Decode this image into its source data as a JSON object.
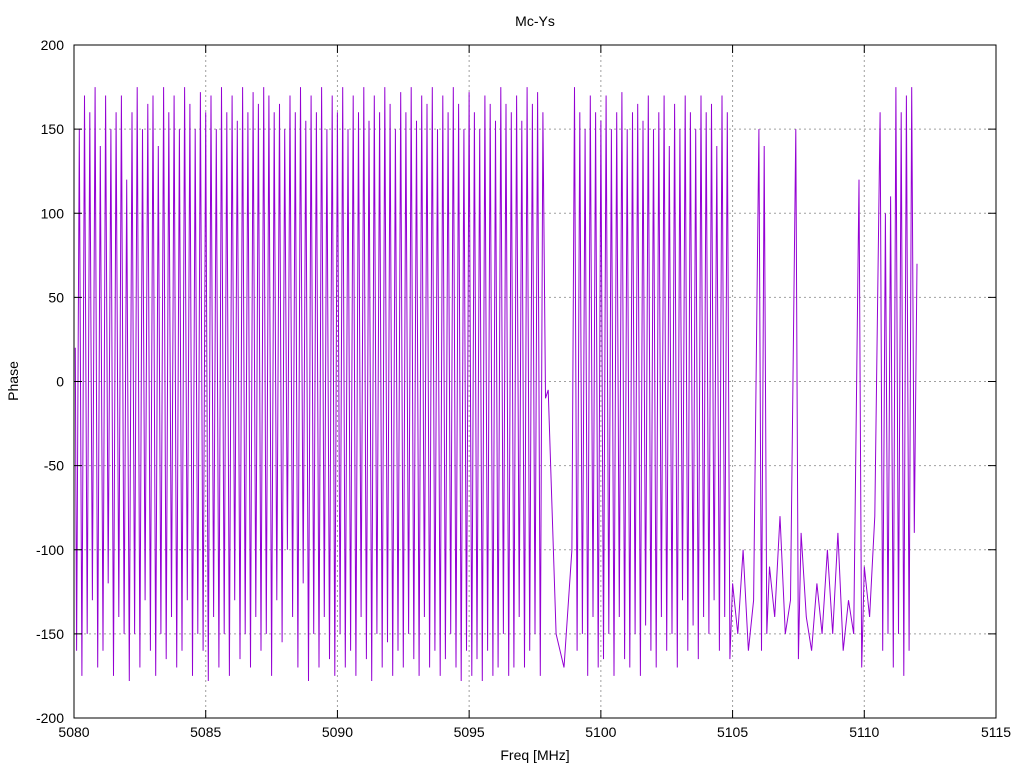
{
  "chart_data": {
    "type": "line",
    "title": "Mc-Ys",
    "xlabel": "Freq [MHz]",
    "ylabel": "Phase",
    "xlim": [
      5080,
      5115
    ],
    "ylim": [
      -200,
      200
    ],
    "xticks": [
      5080,
      5085,
      5090,
      5095,
      5100,
      5105,
      5110,
      5115
    ],
    "yticks": [
      -200,
      -150,
      -100,
      -50,
      0,
      50,
      100,
      150,
      200
    ],
    "grid": true,
    "legend": "none",
    "series": [
      {
        "color": "#9400d3",
        "x_start": 5080.0,
        "x_end": 5112.0,
        "points": [
          [
            5080.05,
            20
          ],
          [
            5080.1,
            -160
          ],
          [
            5080.2,
            150
          ],
          [
            5080.3,
            -175
          ],
          [
            5080.4,
            170
          ],
          [
            5080.5,
            -150
          ],
          [
            5080.6,
            160
          ],
          [
            5080.7,
            -130
          ],
          [
            5080.8,
            175
          ],
          [
            5080.9,
            -170
          ],
          [
            5081.0,
            140
          ],
          [
            5081.1,
            -160
          ],
          [
            5081.2,
            170
          ],
          [
            5081.3,
            -120
          ],
          [
            5081.4,
            150
          ],
          [
            5081.5,
            -175
          ],
          [
            5081.6,
            160
          ],
          [
            5081.7,
            -140
          ],
          [
            5081.8,
            170
          ],
          [
            5081.9,
            -150
          ],
          [
            5082.0,
            120
          ],
          [
            5082.1,
            -178
          ],
          [
            5082.2,
            160
          ],
          [
            5082.3,
            -150
          ],
          [
            5082.4,
            175
          ],
          [
            5082.5,
            -170
          ],
          [
            5082.6,
            150
          ],
          [
            5082.7,
            -130
          ],
          [
            5082.8,
            165
          ],
          [
            5082.9,
            -160
          ],
          [
            5083.0,
            170
          ],
          [
            5083.1,
            -175
          ],
          [
            5083.2,
            140
          ],
          [
            5083.3,
            -150
          ],
          [
            5083.4,
            175
          ],
          [
            5083.5,
            -165
          ],
          [
            5083.6,
            160
          ],
          [
            5083.7,
            -140
          ],
          [
            5083.8,
            170
          ],
          [
            5083.9,
            -170
          ],
          [
            5084.0,
            150
          ],
          [
            5084.1,
            -160
          ],
          [
            5084.2,
            175
          ],
          [
            5084.3,
            -130
          ],
          [
            5084.4,
            165
          ],
          [
            5084.5,
            -175
          ],
          [
            5084.6,
            150
          ],
          [
            5084.7,
            -150
          ],
          [
            5084.8,
            172
          ],
          [
            5084.9,
            -160
          ],
          [
            5085.0,
            160
          ],
          [
            5085.1,
            -178
          ],
          [
            5085.2,
            170
          ],
          [
            5085.3,
            -140
          ],
          [
            5085.4,
            150
          ],
          [
            5085.5,
            -170
          ],
          [
            5085.6,
            175
          ],
          [
            5085.7,
            -150
          ],
          [
            5085.8,
            160
          ],
          [
            5085.9,
            -175
          ],
          [
            5086.0,
            170
          ],
          [
            5086.1,
            -130
          ],
          [
            5086.2,
            155
          ],
          [
            5086.3,
            -165
          ],
          [
            5086.4,
            175
          ],
          [
            5086.5,
            -150
          ],
          [
            5086.6,
            160
          ],
          [
            5086.7,
            -170
          ],
          [
            5086.8,
            172
          ],
          [
            5086.9,
            -140
          ],
          [
            5087.0,
            165
          ],
          [
            5087.1,
            -160
          ],
          [
            5087.2,
            175
          ],
          [
            5087.3,
            -150
          ],
          [
            5087.4,
            170
          ],
          [
            5087.5,
            -175
          ],
          [
            5087.6,
            160
          ],
          [
            5087.7,
            -130
          ],
          [
            5087.8,
            165
          ],
          [
            5087.9,
            -155
          ],
          [
            5088.0,
            150
          ],
          [
            5088.1,
            -100
          ],
          [
            5088.2,
            170
          ],
          [
            5088.3,
            -140
          ],
          [
            5088.4,
            160
          ],
          [
            5088.5,
            -170
          ],
          [
            5088.6,
            175
          ],
          [
            5088.7,
            -120
          ],
          [
            5088.8,
            155
          ],
          [
            5088.9,
            -178
          ],
          [
            5089.0,
            170
          ],
          [
            5089.1,
            -150
          ],
          [
            5089.2,
            160
          ],
          [
            5089.3,
            -170
          ],
          [
            5089.4,
            175
          ],
          [
            5089.5,
            -140
          ],
          [
            5089.6,
            150
          ],
          [
            5089.7,
            -165
          ],
          [
            5089.8,
            170
          ],
          [
            5089.9,
            -175
          ],
          [
            5090.0,
            160
          ],
          [
            5090.1,
            -150
          ],
          [
            5090.2,
            175
          ],
          [
            5090.3,
            -170
          ],
          [
            5090.4,
            150
          ],
          [
            5090.5,
            -160
          ],
          [
            5090.6,
            170
          ],
          [
            5090.7,
            -175
          ],
          [
            5090.8,
            160
          ],
          [
            5090.9,
            -140
          ],
          [
            5091.0,
            175
          ],
          [
            5091.1,
            -165
          ],
          [
            5091.2,
            155
          ],
          [
            5091.3,
            -178
          ],
          [
            5091.4,
            170
          ],
          [
            5091.5,
            -150
          ],
          [
            5091.6,
            160
          ],
          [
            5091.7,
            -170
          ],
          [
            5091.8,
            175
          ],
          [
            5091.9,
            -155
          ],
          [
            5092.0,
            165
          ],
          [
            5092.1,
            -175
          ],
          [
            5092.2,
            150
          ],
          [
            5092.3,
            -160
          ],
          [
            5092.4,
            172
          ],
          [
            5092.5,
            -170
          ],
          [
            5092.6,
            160
          ],
          [
            5092.7,
            -150
          ],
          [
            5092.8,
            175
          ],
          [
            5092.9,
            -165
          ],
          [
            5093.0,
            155
          ],
          [
            5093.1,
            -175
          ],
          [
            5093.2,
            170
          ],
          [
            5093.3,
            -140
          ],
          [
            5093.4,
            165
          ],
          [
            5093.5,
            -170
          ],
          [
            5093.6,
            175
          ],
          [
            5093.7,
            -160
          ],
          [
            5093.8,
            150
          ],
          [
            5093.9,
            -175
          ],
          [
            5094.0,
            170
          ],
          [
            5094.1,
            -165
          ],
          [
            5094.2,
            160
          ],
          [
            5094.3,
            -150
          ],
          [
            5094.4,
            175
          ],
          [
            5094.5,
            -170
          ],
          [
            5094.6,
            165
          ],
          [
            5094.7,
            -178
          ],
          [
            5094.8,
            150
          ],
          [
            5094.9,
            -160
          ],
          [
            5095.0,
            172
          ],
          [
            5095.1,
            -175
          ],
          [
            5095.2,
            160
          ],
          [
            5095.3,
            -165
          ],
          [
            5095.4,
            150
          ],
          [
            5095.5,
            -178
          ],
          [
            5095.6,
            170
          ],
          [
            5095.7,
            -160
          ],
          [
            5095.8,
            165
          ],
          [
            5095.9,
            -175
          ],
          [
            5096.0,
            155
          ],
          [
            5096.1,
            -170
          ],
          [
            5096.2,
            175
          ],
          [
            5096.3,
            -150
          ],
          [
            5096.4,
            165
          ],
          [
            5096.5,
            -175
          ],
          [
            5096.6,
            160
          ],
          [
            5096.7,
            -170
          ],
          [
            5096.8,
            170
          ],
          [
            5096.9,
            -140
          ],
          [
            5097.0,
            155
          ],
          [
            5097.1,
            -170
          ],
          [
            5097.2,
            175
          ],
          [
            5097.3,
            -160
          ],
          [
            5097.4,
            165
          ],
          [
            5097.5,
            -150
          ],
          [
            5097.6,
            172
          ],
          [
            5097.7,
            -175
          ],
          [
            5097.8,
            160
          ],
          [
            5097.9,
            -10
          ],
          [
            5098.0,
            -5
          ],
          [
            5098.3,
            -150
          ],
          [
            5098.6,
            -170
          ],
          [
            5098.9,
            -100
          ],
          [
            5099.0,
            175
          ],
          [
            5099.1,
            -160
          ],
          [
            5099.2,
            160
          ],
          [
            5099.3,
            -150
          ],
          [
            5099.4,
            150
          ],
          [
            5099.5,
            -175
          ],
          [
            5099.6,
            170
          ],
          [
            5099.7,
            -140
          ],
          [
            5099.8,
            160
          ],
          [
            5099.9,
            -170
          ],
          [
            5100.0,
            155
          ],
          [
            5100.1,
            -165
          ],
          [
            5100.2,
            170
          ],
          [
            5100.3,
            -150
          ],
          [
            5100.4,
            150
          ],
          [
            5100.5,
            -175
          ],
          [
            5100.6,
            160
          ],
          [
            5100.7,
            -140
          ],
          [
            5100.8,
            172
          ],
          [
            5100.9,
            -165
          ],
          [
            5101.0,
            150
          ],
          [
            5101.1,
            -170
          ],
          [
            5101.2,
            160
          ],
          [
            5101.3,
            -150
          ],
          [
            5101.4,
            165
          ],
          [
            5101.5,
            -175
          ],
          [
            5101.6,
            155
          ],
          [
            5101.7,
            -145
          ],
          [
            5101.8,
            170
          ],
          [
            5101.9,
            -160
          ],
          [
            5102.0,
            150
          ],
          [
            5102.1,
            -170
          ],
          [
            5102.2,
            160
          ],
          [
            5102.3,
            -140
          ],
          [
            5102.4,
            170
          ],
          [
            5102.5,
            -160
          ],
          [
            5102.6,
            140
          ],
          [
            5102.7,
            -150
          ],
          [
            5102.8,
            165
          ],
          [
            5102.9,
            -170
          ],
          [
            5103.0,
            150
          ],
          [
            5103.1,
            -130
          ],
          [
            5103.2,
            170
          ],
          [
            5103.3,
            -160
          ],
          [
            5103.4,
            160
          ],
          [
            5103.5,
            -145
          ],
          [
            5103.6,
            150
          ],
          [
            5103.7,
            -165
          ],
          [
            5103.8,
            170
          ],
          [
            5103.9,
            -140
          ],
          [
            5104.0,
            160
          ],
          [
            5104.1,
            -150
          ],
          [
            5104.2,
            165
          ],
          [
            5104.3,
            -130
          ],
          [
            5104.4,
            140
          ],
          [
            5104.5,
            -160
          ],
          [
            5104.6,
            170
          ],
          [
            5104.7,
            -140
          ],
          [
            5104.8,
            160
          ],
          [
            5104.9,
            -165
          ],
          [
            5105.0,
            -120
          ],
          [
            5105.2,
            -150
          ],
          [
            5105.4,
            -100
          ],
          [
            5105.6,
            -160
          ],
          [
            5105.8,
            -130
          ],
          [
            5106.0,
            150
          ],
          [
            5106.1,
            -160
          ],
          [
            5106.2,
            140
          ],
          [
            5106.3,
            -150
          ],
          [
            5106.4,
            -110
          ],
          [
            5106.6,
            -140
          ],
          [
            5106.8,
            -80
          ],
          [
            5107.0,
            -150
          ],
          [
            5107.2,
            -130
          ],
          [
            5107.4,
            150
          ],
          [
            5107.5,
            -165
          ],
          [
            5107.6,
            -90
          ],
          [
            5107.8,
            -140
          ],
          [
            5108.0,
            -160
          ],
          [
            5108.2,
            -120
          ],
          [
            5108.4,
            -150
          ],
          [
            5108.6,
            -100
          ],
          [
            5108.8,
            -150
          ],
          [
            5109.0,
            -90
          ],
          [
            5109.2,
            -160
          ],
          [
            5109.4,
            -130
          ],
          [
            5109.6,
            -150
          ],
          [
            5109.8,
            120
          ],
          [
            5109.9,
            -170
          ],
          [
            5110.0,
            -110
          ],
          [
            5110.2,
            -140
          ],
          [
            5110.4,
            -80
          ],
          [
            5110.6,
            160
          ],
          [
            5110.7,
            -160
          ],
          [
            5110.8,
            100
          ],
          [
            5110.9,
            -150
          ],
          [
            5111.0,
            110
          ],
          [
            5111.1,
            -170
          ],
          [
            5111.2,
            175
          ],
          [
            5111.3,
            -150
          ],
          [
            5111.4,
            160
          ],
          [
            5111.5,
            -175
          ],
          [
            5111.6,
            170
          ],
          [
            5111.7,
            -160
          ],
          [
            5111.8,
            175
          ],
          [
            5111.9,
            -90
          ],
          [
            5112.0,
            70
          ]
        ]
      }
    ]
  }
}
